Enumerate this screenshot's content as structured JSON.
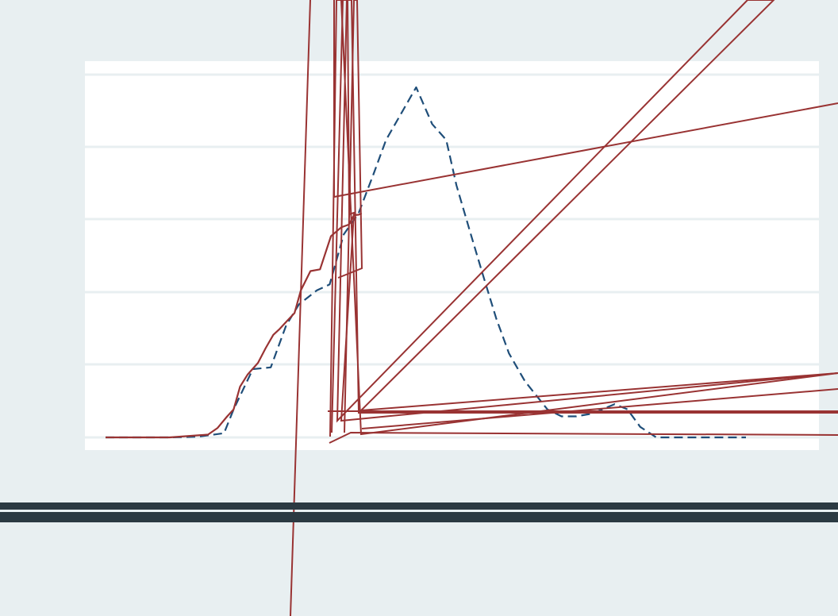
{
  "chart_data": {
    "type": "line",
    "title": "",
    "xlabel": "",
    "ylabel": "",
    "grid": true,
    "legend": "none",
    "x_range": [
      0,
      1
    ],
    "y_range": [
      0,
      1
    ],
    "colors": {
      "background": "#e8eff1",
      "plot_area": "#ffffff",
      "grid": "#e8eff1",
      "series_dashed": "#1f4e79",
      "series_solid": "#993333",
      "bands": "#2b3a42"
    },
    "series": [
      {
        "style": "dashed",
        "color": "#1f4e79",
        "x": [
          0.0,
          0.1,
          0.145,
          0.185,
          0.2,
          0.23,
          0.258,
          0.282,
          0.302,
          0.33,
          0.35,
          0.372,
          0.395,
          0.418,
          0.438,
          0.46,
          0.485,
          0.51,
          0.532,
          0.548,
          0.572,
          0.59,
          0.61,
          0.63,
          0.655,
          0.69,
          0.712,
          0.735,
          0.76,
          0.795,
          0.815,
          0.835,
          0.86,
          0.88,
          1.0
        ],
        "y": [
          0.0,
          0.0,
          0.002,
          0.012,
          0.08,
          0.195,
          0.2,
          0.32,
          0.38,
          0.42,
          0.437,
          0.58,
          0.64,
          0.75,
          0.85,
          0.92,
          1.0,
          0.895,
          0.85,
          0.72,
          0.57,
          0.46,
          0.34,
          0.24,
          0.16,
          0.08,
          0.06,
          0.06,
          0.068,
          0.095,
          0.08,
          0.03,
          0.0,
          0.0,
          0.0
        ]
      },
      {
        "style": "solid",
        "color": "#993333",
        "x": [
          0.0,
          0.1,
          0.16,
          0.175,
          0.19,
          0.2,
          0.21,
          0.222,
          0.238,
          0.25,
          0.262,
          0.272,
          0.282,
          0.295,
          0.305,
          0.32,
          0.335,
          0.352,
          0.368,
          0.38,
          0.388,
          0.395,
          0.4
        ],
        "y": [
          0.0,
          0.0,
          0.008,
          0.027,
          0.06,
          0.08,
          0.145,
          0.18,
          0.213,
          0.255,
          0.293,
          0.31,
          0.33,
          0.355,
          0.42,
          0.475,
          0.48,
          0.575,
          0.6,
          0.608,
          0.635,
          0.636,
          0.64
        ]
      }
    ]
  }
}
